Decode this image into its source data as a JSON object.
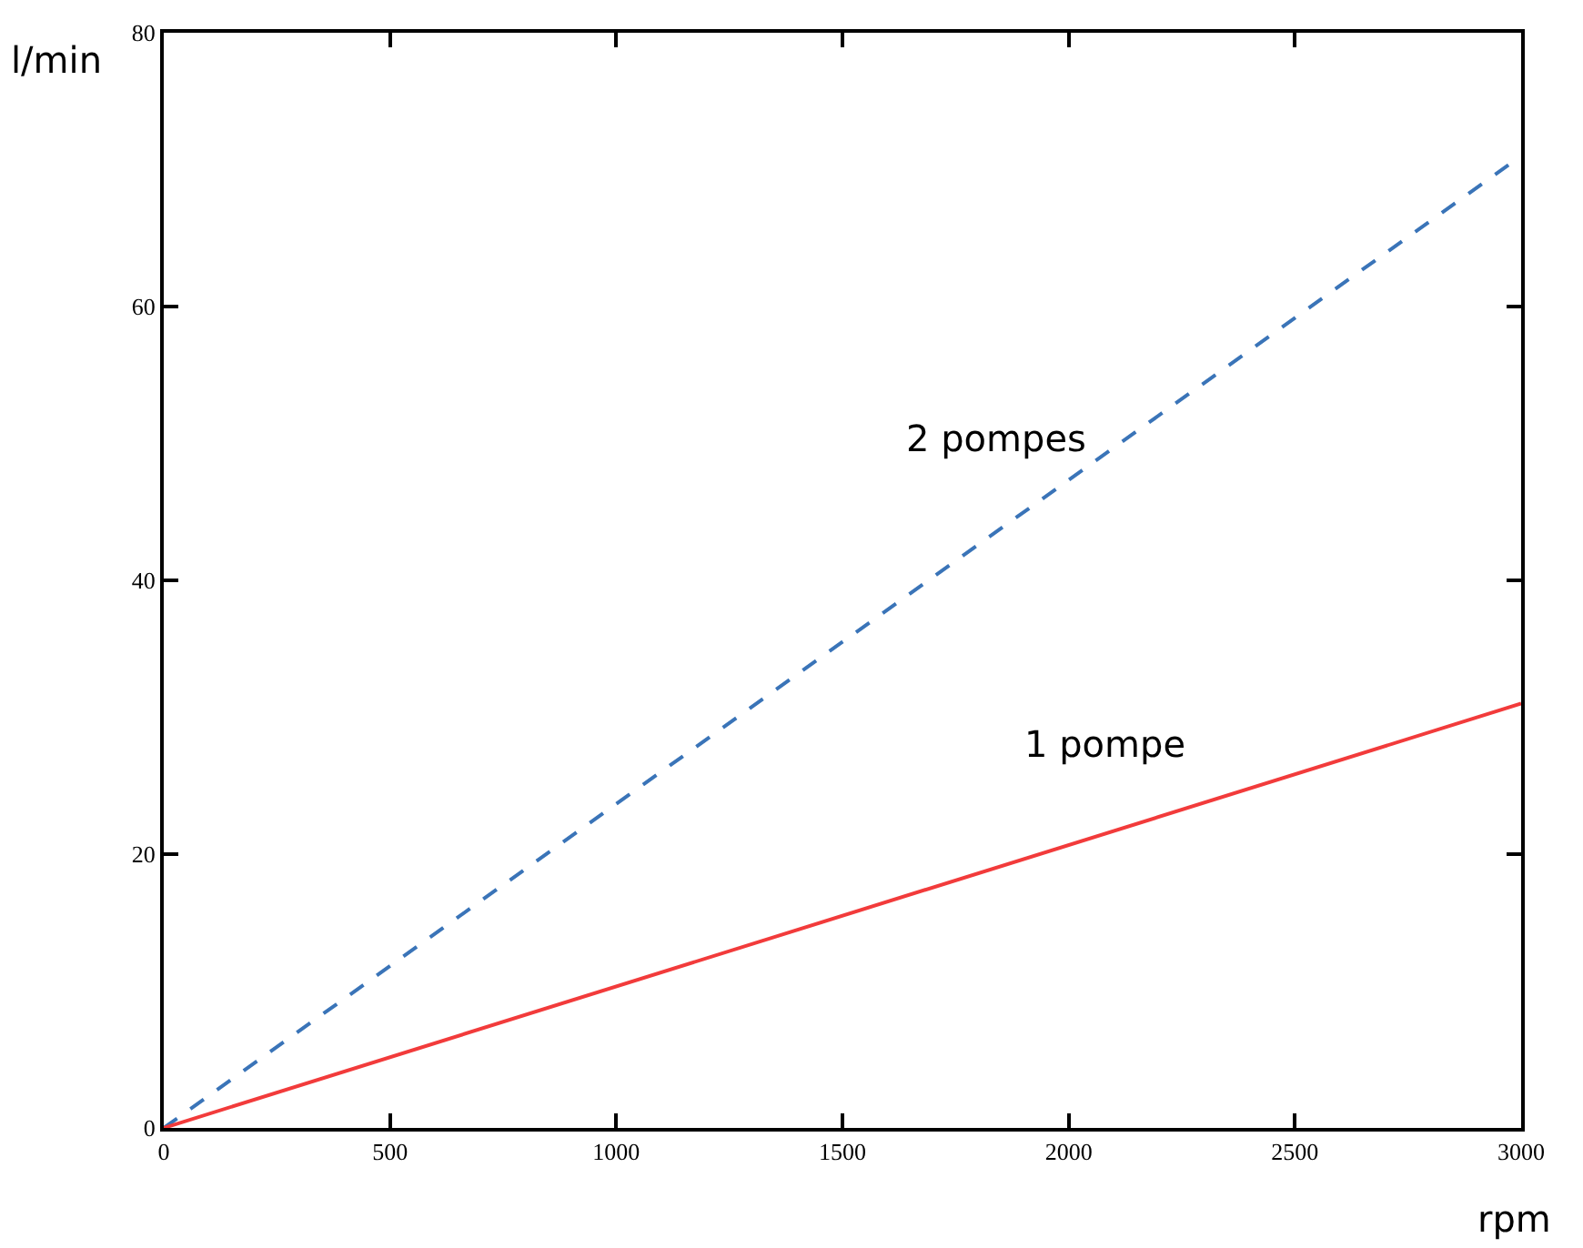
{
  "chart_data": {
    "type": "line",
    "xlabel": "rpm",
    "ylabel": "l/min",
    "x": [
      0,
      3000
    ],
    "series": [
      {
        "name": "2 pompes",
        "color": "#3a74b8",
        "values": [
          0,
          71
        ],
        "line_style": "dashed"
      },
      {
        "name": "1 pompe",
        "color": "#f23b3b",
        "values": [
          0,
          31
        ],
        "line_style": "solid"
      }
    ],
    "xlim": [
      0,
      3000
    ],
    "xticks": [
      0,
      500,
      1000,
      1500,
      2000,
      2500,
      3000
    ],
    "ylim": [
      0,
      80
    ],
    "yticks": [
      0,
      20,
      40,
      60,
      80
    ],
    "grid": false,
    "legend": false,
    "marker": "none"
  }
}
